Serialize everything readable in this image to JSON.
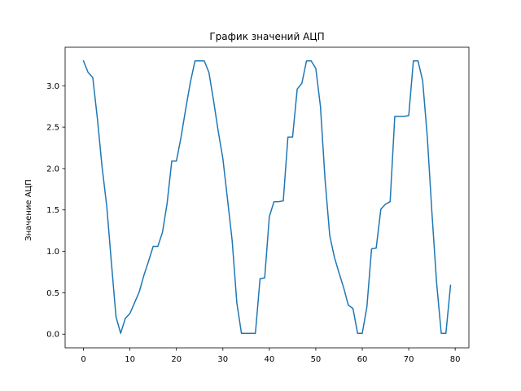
{
  "chart_data": {
    "type": "line",
    "title": "График значений АЦП",
    "xlabel": "",
    "ylabel": "Значение АЦП",
    "xlim": [
      -3.95,
      82.95
    ],
    "ylim": [
      -0.165,
      3.465
    ],
    "xticks": [
      0,
      10,
      20,
      30,
      40,
      50,
      60,
      70,
      80
    ],
    "yticks": [
      0.0,
      0.5,
      1.0,
      1.5,
      2.0,
      2.5,
      3.0
    ],
    "ytick_labels": [
      "0.0",
      "0.5",
      "1.0",
      "1.5",
      "2.0",
      "2.5",
      "3.0"
    ],
    "grid": false,
    "series": [
      {
        "color": "#1f77b4",
        "x": [
          0,
          1,
          2,
          3,
          4,
          5,
          6,
          7,
          8,
          9,
          10,
          11,
          12,
          13,
          14,
          15,
          16,
          17,
          18,
          19,
          20,
          21,
          22,
          23,
          24,
          25,
          26,
          27,
          28,
          29,
          30,
          31,
          32,
          33,
          34,
          35,
          36,
          37,
          38,
          39,
          40,
          41,
          42,
          43,
          44,
          45,
          46,
          47,
          48,
          49,
          50,
          51,
          52,
          53,
          54,
          55,
          56,
          57,
          58,
          59,
          60,
          61,
          62,
          63,
          64,
          65,
          66,
          67,
          68,
          69,
          70,
          71,
          72,
          73,
          74,
          75,
          76,
          77,
          78,
          79
        ],
        "y": [
          3.3,
          3.16,
          3.1,
          2.6,
          2.02,
          1.55,
          0.87,
          0.21,
          0.01,
          0.19,
          0.25,
          0.38,
          0.51,
          0.71,
          0.88,
          1.06,
          1.06,
          1.23,
          1.58,
          2.09,
          2.09,
          2.38,
          2.72,
          3.04,
          3.3,
          3.3,
          3.3,
          3.16,
          2.82,
          2.45,
          2.12,
          1.63,
          1.13,
          0.38,
          0.01,
          0.01,
          0.01,
          0.01,
          0.67,
          0.68,
          1.42,
          1.6,
          1.6,
          1.61,
          2.38,
          2.38,
          2.96,
          3.03,
          3.3,
          3.3,
          3.21,
          2.75,
          1.86,
          1.19,
          0.93,
          0.74,
          0.56,
          0.35,
          0.31,
          0.01,
          0.01,
          0.33,
          1.03,
          1.04,
          1.51,
          1.57,
          1.6,
          2.63,
          2.63,
          2.63,
          2.64,
          3.3,
          3.3,
          3.06,
          2.38,
          1.46,
          0.62,
          0.01,
          0.01,
          0.59
        ]
      }
    ]
  }
}
